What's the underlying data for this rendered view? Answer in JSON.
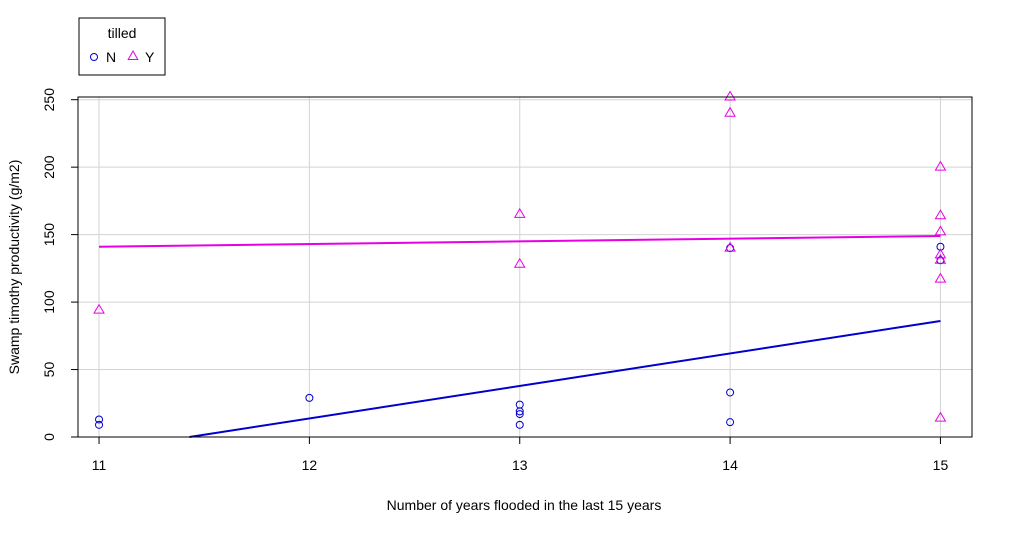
{
  "chart_data": {
    "type": "scatter",
    "xlabel": "Number of years flooded in the last 15 years",
    "ylabel": "Swamp timothy productivity (g/m2)",
    "xlim": [
      10.9,
      15.15
    ],
    "ylim": [
      0,
      252
    ],
    "x_ticks": [
      11,
      12,
      13,
      14,
      15
    ],
    "y_ticks": [
      0,
      50,
      100,
      150,
      200,
      250
    ],
    "grid": true,
    "legend": {
      "title": "tilled",
      "position": "top-left",
      "entries": [
        "N",
        "Y"
      ]
    },
    "series": [
      {
        "name": "N",
        "marker": "circle",
        "color": "#0000CD",
        "points": [
          [
            11,
            9
          ],
          [
            11,
            13
          ],
          [
            12,
            29
          ],
          [
            13,
            9
          ],
          [
            13,
            17
          ],
          [
            13,
            19
          ],
          [
            13,
            24
          ],
          [
            14,
            11
          ],
          [
            14,
            33
          ],
          [
            14,
            140
          ],
          [
            15,
            131
          ],
          [
            15,
            141
          ]
        ],
        "fit_line": {
          "x": [
            11.43,
            15
          ],
          "y": [
            0,
            86
          ]
        }
      },
      {
        "name": "Y",
        "marker": "triangle",
        "color": "#E600E6",
        "points": [
          [
            11,
            94
          ],
          [
            13,
            128
          ],
          [
            13,
            165
          ],
          [
            14,
            140
          ],
          [
            14,
            240
          ],
          [
            14,
            252
          ],
          [
            15,
            14
          ],
          [
            15,
            117
          ],
          [
            15,
            131
          ],
          [
            15,
            135
          ],
          [
            15,
            152
          ],
          [
            15,
            164
          ],
          [
            15,
            200
          ]
        ],
        "fit_line": {
          "x": [
            11,
            15
          ],
          "y": [
            141,
            149
          ]
        }
      }
    ]
  }
}
